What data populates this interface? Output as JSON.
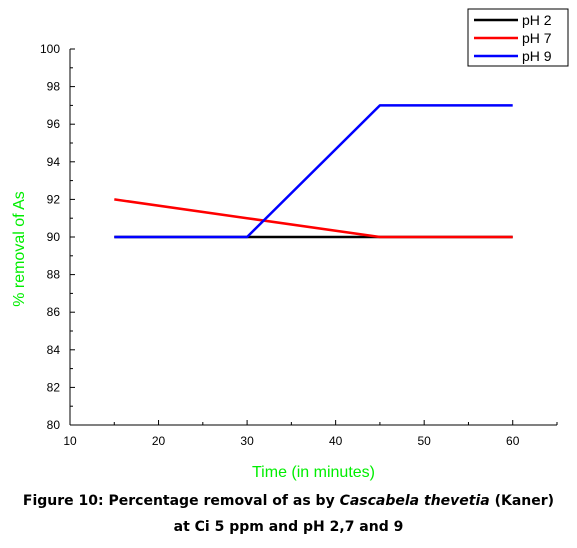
{
  "chart_data": {
    "type": "line",
    "title": "",
    "xlabel": "Time (in minutes)",
    "ylabel": "% removal of As",
    "xlim": [
      10,
      65
    ],
    "ylim": [
      80,
      100
    ],
    "xticks": [
      10,
      20,
      30,
      40,
      50,
      60
    ],
    "yticks": [
      80,
      82,
      84,
      86,
      88,
      90,
      92,
      94,
      96,
      98,
      100
    ],
    "grid": false,
    "legend_position": "top-right",
    "series": [
      {
        "name": "pH 2",
        "color": "#000000",
        "x": [
          15,
          30,
          45,
          60
        ],
        "y": [
          90,
          90,
          90,
          90
        ]
      },
      {
        "name": "pH 7",
        "color": "#ff0000",
        "x": [
          15,
          30,
          45,
          60
        ],
        "y": [
          92,
          91,
          90,
          90
        ]
      },
      {
        "name": "pH 9",
        "color": "#0000ff",
        "x": [
          15,
          30,
          45,
          60
        ],
        "y": [
          90,
          90,
          97,
          97
        ]
      }
    ],
    "axis_title_color": "#00ee00"
  },
  "caption": {
    "line1_prefix": "Figure 10: Percentage removal of as by ",
    "line1_italic": "Cascabela thevetia",
    "line1_suffix": " (Kaner)",
    "line2": "at Ci 5 ppm and pH 2,7 and 9"
  }
}
